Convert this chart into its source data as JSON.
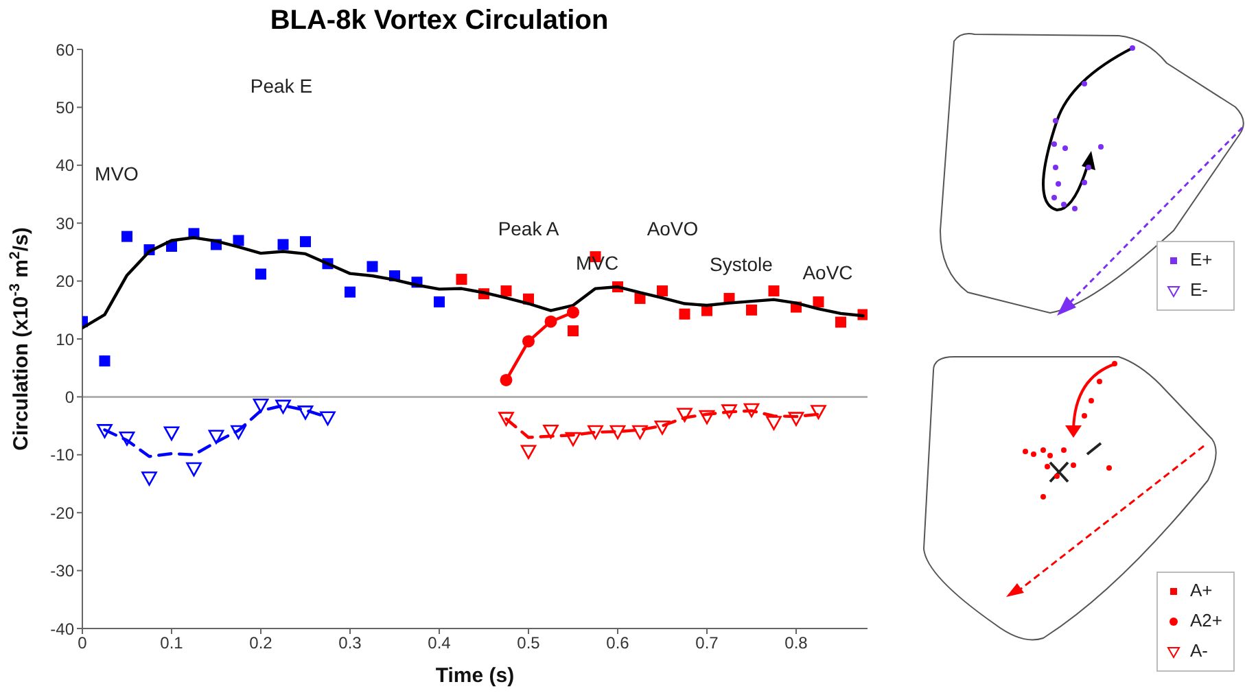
{
  "chart_data": [
    {
      "type": "scatter",
      "title": "BLA-8k Vortex Circulation",
      "xlabel": "Time (s)",
      "ylabel": "Circulation (x10$^{-3}$ m$^{2}$/s)",
      "xlim": [
        0,
        0.88
      ],
      "xticks": [
        0,
        0.1,
        0.2,
        0.3,
        0.4,
        0.5,
        0.6,
        0.7,
        0.8
      ],
      "ylim": [
        -40,
        60
      ],
      "yticks": [
        -40,
        -30,
        -20,
        -10,
        0,
        10,
        20,
        30,
        40,
        50,
        60
      ],
      "ref_lines": [
        {
          "axis": "y",
          "value": 0,
          "color": "#b0b0b0"
        }
      ],
      "annotations": [
        "MVO",
        "Peak E",
        "Peak A",
        "MVC",
        "AoVO",
        "Systole",
        "AoVC"
      ],
      "series": [
        {
          "type": "scatter",
          "marker": "square",
          "color": "#0000ff",
          "x": [
            0,
            0.025,
            0.05,
            0.075,
            0.1,
            0.125,
            0.15,
            0.175,
            0.2,
            0.225,
            0.25,
            0.275,
            0.3,
            0.325,
            0.35,
            0.375,
            0.4
          ],
          "values": [
            13.0,
            6.2,
            27.7,
            25.4,
            26.0,
            28.2,
            26.3,
            27.0,
            21.2,
            26.3,
            26.8,
            23.0,
            18.1,
            22.5,
            20.9,
            19.8,
            16.4
          ]
        },
        {
          "type": "scatter",
          "marker": "square",
          "color": "#ff0000",
          "x": [
            0.425,
            0.45,
            0.475,
            0.5,
            0.55,
            0.575,
            0.6,
            0.625,
            0.65,
            0.675,
            0.7,
            0.725,
            0.75,
            0.775,
            0.8,
            0.825,
            0.85,
            0.875
          ],
          "values": [
            20.3,
            17.8,
            18.3,
            16.9,
            11.4,
            24.2,
            19.0,
            17.0,
            18.3,
            14.3,
            14.9,
            17.0,
            15.0,
            18.3,
            15.5,
            16.4,
            12.9,
            14.2
          ]
        },
        {
          "type": "line",
          "marker": "none",
          "line_style": "solid",
          "color": "#000000",
          "x": [
            0,
            0.025,
            0.05,
            0.075,
            0.1,
            0.125,
            0.15,
            0.175,
            0.2,
            0.225,
            0.25,
            0.275,
            0.3,
            0.325,
            0.35,
            0.375,
            0.4,
            0.425,
            0.45,
            0.475,
            0.5,
            0.525,
            0.55,
            0.575,
            0.6,
            0.625,
            0.65,
            0.675,
            0.7,
            0.725,
            0.75,
            0.775,
            0.8,
            0.825,
            0.85,
            0.875
          ],
          "values": [
            11.9,
            14.2,
            21.0,
            25.1,
            27.0,
            27.5,
            26.9,
            25.9,
            24.8,
            25.1,
            24.7,
            23.0,
            21.3,
            20.9,
            20.2,
            19.3,
            18.6,
            18.7,
            18.0,
            17.1,
            16.1,
            14.9,
            15.8,
            18.7,
            19.0,
            18.0,
            17.1,
            16.1,
            15.8,
            16.2,
            16.5,
            16.8,
            16.2,
            15.2,
            14.4,
            14.0
          ]
        },
        {
          "type": "line",
          "marker": "circle",
          "line_style": "solid",
          "color": "#ff0000",
          "x": [
            0.475,
            0.5,
            0.525,
            0.55
          ],
          "values": [
            2.9,
            9.6,
            13.0,
            14.6
          ]
        },
        {
          "type": "scatter",
          "marker": "triangle",
          "color": "#0000ff",
          "x": [
            0.025,
            0.05,
            0.075,
            0.1,
            0.125,
            0.15,
            0.175,
            0.2,
            0.225,
            0.25,
            0.275
          ],
          "values": [
            -5.8,
            -7.1,
            -14.0,
            -6.2,
            -12.4,
            -6.8,
            -6.0,
            -1.4,
            -1.6,
            -2.6,
            -3.6
          ]
        },
        {
          "type": "line",
          "marker": "none",
          "line_style": "dashed",
          "color": "#0000ff",
          "x": [
            0.025,
            0.05,
            0.075,
            0.1,
            0.125,
            0.15,
            0.175,
            0.2,
            0.225,
            0.25,
            0.275
          ],
          "values": [
            -5.7,
            -7.5,
            -10.3,
            -9.8,
            -10.0,
            -7.8,
            -5.8,
            -2.4,
            -1.5,
            -2.3,
            -3.5
          ]
        },
        {
          "type": "scatter",
          "marker": "triangle",
          "color": "#ff0000",
          "x": [
            0.475,
            0.5,
            0.525,
            0.55,
            0.575,
            0.6,
            0.625,
            0.65,
            0.675,
            0.7,
            0.725,
            0.75,
            0.775,
            0.8,
            0.825
          ],
          "values": [
            -3.7,
            -9.4,
            -5.9,
            -7.2,
            -6.0,
            -6.0,
            -6.0,
            -5.2,
            -3.0,
            -3.4,
            -2.4,
            -2.2,
            -4.4,
            -3.7,
            -2.5
          ]
        },
        {
          "type": "line",
          "marker": "none",
          "line_style": "dashed",
          "color": "#ff0000",
          "x": [
            0.475,
            0.5,
            0.525,
            0.55,
            0.575,
            0.6,
            0.625,
            0.65,
            0.675,
            0.7,
            0.725,
            0.75,
            0.775,
            0.8,
            0.825
          ],
          "values": [
            -3.8,
            -7.0,
            -6.8,
            -6.6,
            -6.1,
            -6.0,
            -5.7,
            -5.0,
            -3.6,
            -3.0,
            -2.6,
            -2.4,
            -3.3,
            -3.4,
            -3.0
          ]
        }
      ]
    },
    {
      "type": "other",
      "annotations": [
        "E+",
        "E-"
      ]
    },
    {
      "type": "other",
      "annotations": [
        "A+",
        "A2+",
        "A-"
      ]
    }
  ]
}
